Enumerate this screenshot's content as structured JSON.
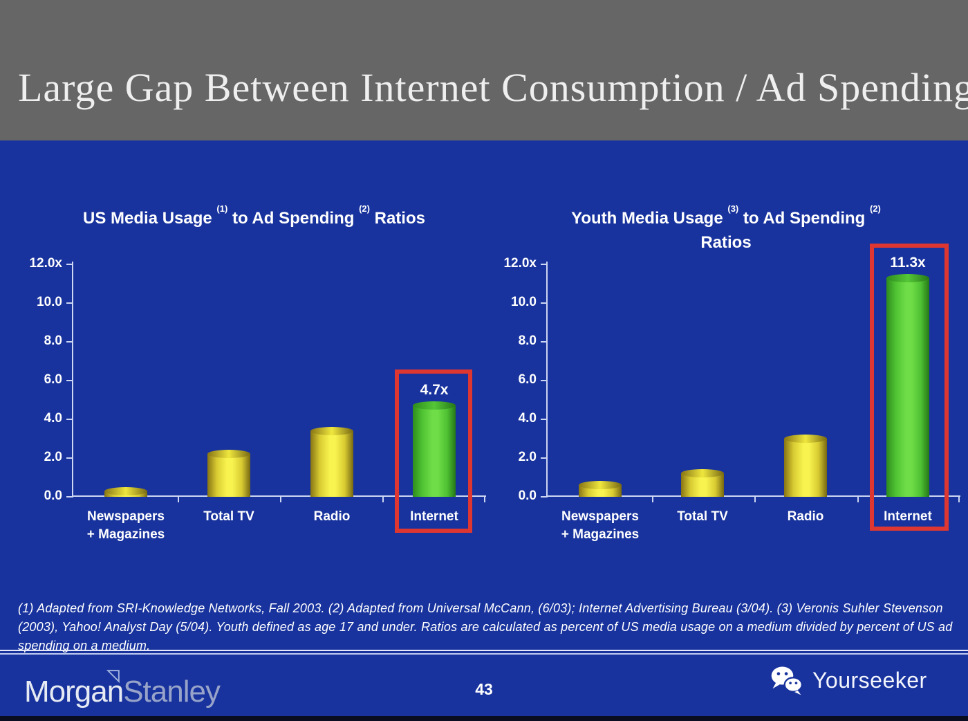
{
  "slide": {
    "title": "Large Gap Between Internet Consumption / Ad Spending",
    "page_number": "43",
    "footnote": "(1) Adapted from SRI-Knowledge Networks, Fall 2003.  (2) Adapted from Universal McCann, (6/03); Internet Advertising Bureau (3/04). (3) Veronis Suhler Stevenson (2003), Yahoo! Analyst Day (5/04).  Youth defined as age 17 and under.  Ratios are calculated as percent of US media usage on a medium divided by percent of US ad spending on a medium.",
    "footer": {
      "brand_left_part1": "Morgan",
      "brand_left_part2": "Stanley",
      "brand_right": "Yourseeker"
    },
    "icons": {
      "brand_left_mark": "triangle-flag-icon",
      "brand_right_mark": "wechat-icon"
    }
  },
  "colors": {
    "header_gray": "#666666",
    "background_blue": "#18339D",
    "axis_light": "#CDD6F2",
    "bar_yellow": "#F8F34F",
    "bar_yellow_edge": "#8A7814",
    "bar_green": "#6FDD47",
    "bar_green_edge": "#2E8C1D",
    "highlight_red": "#DE3732",
    "text_white": "#FFFFFF",
    "stanley_gray": "#97A3C9",
    "bottom_strip": "#0A0D1F"
  },
  "chart_data": [
    {
      "type": "bar",
      "title": "US Media Usage (1) to Ad Spending (2) Ratios",
      "title_lines": [
        [
          {
            "text": "US Media Usage ",
            "sup": "(1)"
          },
          {
            "text": " to Ad Spending ",
            "sup": "(2)"
          },
          {
            "text": " Ratios"
          }
        ]
      ],
      "categories": [
        "Newspapers + Magazines",
        "Total TV",
        "Radio",
        "Internet"
      ],
      "category_lines": [
        [
          "Newspapers",
          "+ Magazines"
        ],
        [
          "Total TV"
        ],
        [
          "Radio"
        ],
        [
          "Internet"
        ]
      ],
      "values": [
        0.3,
        2.2,
        3.4,
        4.7
      ],
      "unit_suffix": "x",
      "ylim": [
        0,
        12
      ],
      "ytick_labels": [
        "12.0x",
        "10.0",
        "8.0",
        "6.0",
        "4.0",
        "2.0",
        "0.0"
      ],
      "highlight_index": 3,
      "highlight_label": "4.7x",
      "bar_colors": [
        "yellow",
        "yellow",
        "yellow",
        "green"
      ],
      "grid": false,
      "legend": false
    },
    {
      "type": "bar",
      "title": "Youth Media Usage (3) to Ad Spending (2) Ratios",
      "title_lines": [
        [
          {
            "text": "Youth Media Usage ",
            "sup": "(3)"
          },
          {
            "text": " to Ad Spending ",
            "sup": "(2)"
          }
        ],
        [
          {
            "text": "Ratios"
          }
        ]
      ],
      "categories": [
        "Newspapers + Magazines",
        "Total TV",
        "Radio",
        "Internet"
      ],
      "category_lines": [
        [
          "Newspapers",
          "+ Magazines"
        ],
        [
          "Total TV"
        ],
        [
          "Radio"
        ],
        [
          "Internet"
        ]
      ],
      "values": [
        0.6,
        1.2,
        3.0,
        11.3
      ],
      "unit_suffix": "x",
      "ylim": [
        0,
        12
      ],
      "ytick_labels": [
        "12.0x",
        "10.0",
        "8.0",
        "6.0",
        "4.0",
        "2.0",
        "0.0"
      ],
      "highlight_index": 3,
      "highlight_label": "11.3x",
      "bar_colors": [
        "yellow",
        "yellow",
        "yellow",
        "green"
      ],
      "grid": false,
      "legend": false
    }
  ]
}
